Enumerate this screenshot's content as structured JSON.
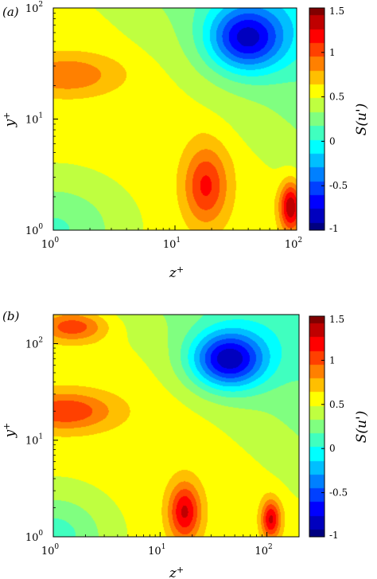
{
  "chart_data": [
    {
      "type": "heatmap",
      "panel_label": "(a)",
      "xlabel": "z+",
      "ylabel": "y+",
      "x_scale": "log",
      "y_scale": "log",
      "xlim": [
        1,
        100
      ],
      "ylim": [
        1,
        100
      ],
      "x_ticks": [
        {
          "base": "10",
          "exp": "0"
        },
        {
          "base": "10",
          "exp": "1"
        },
        {
          "base": "10",
          "exp": "2"
        }
      ],
      "y_ticks": [
        {
          "base": "10",
          "exp": "0"
        },
        {
          "base": "10",
          "exp": "1"
        },
        {
          "base": "10",
          "exp": "2"
        }
      ],
      "colorbar": {
        "label": "S(u')",
        "range": [
          -1,
          1.5
        ],
        "ticks": [
          "-1",
          "-0.5",
          "0",
          "0.5",
          "1",
          "1.5"
        ],
        "colormap": "jet"
      },
      "features": [
        {
          "z": 1,
          "y": 1,
          "value": 0.15,
          "spread": [
            0.55,
            0.45
          ],
          "shape": "corner"
        },
        {
          "z": 1.3,
          "y": 25,
          "value": 0.95,
          "spread": [
            0.4,
            0.18
          ]
        },
        {
          "z": 18,
          "y": 2.5,
          "value": 1.15,
          "spread": [
            0.18,
            0.35
          ]
        },
        {
          "z": 90,
          "y": 1.6,
          "value": 1.4,
          "spread": [
            0.09,
            0.22
          ]
        },
        {
          "z": 40,
          "y": 55,
          "value": -0.85,
          "spread": [
            0.32,
            0.3
          ]
        }
      ]
    },
    {
      "type": "heatmap",
      "panel_label": "(b)",
      "xlabel": "z+",
      "ylabel": "y+",
      "x_scale": "log",
      "y_scale": "log",
      "xlim": [
        1,
        200
      ],
      "ylim": [
        1,
        200
      ],
      "x_ticks": [
        {
          "base": "10",
          "exp": "0"
        },
        {
          "base": "10",
          "exp": "1"
        },
        {
          "base": "10",
          "exp": "2"
        }
      ],
      "y_ticks": [
        {
          "base": "10",
          "exp": "0"
        },
        {
          "base": "10",
          "exp": "1"
        },
        {
          "base": "10",
          "exp": "2"
        }
      ],
      "colorbar": {
        "label": "S(u')",
        "range": [
          -1,
          1.5
        ],
        "ticks": [
          "-1",
          "-0.5",
          "0",
          "0.5",
          "1",
          "1.5"
        ],
        "colormap": "jet"
      },
      "features": [
        {
          "z": 1,
          "y": 1,
          "value": 0.1,
          "spread": [
            0.5,
            0.45
          ],
          "shape": "corner"
        },
        {
          "z": 1.3,
          "y": 20,
          "value": 1.1,
          "spread": [
            0.45,
            0.2
          ]
        },
        {
          "z": 1.5,
          "y": 150,
          "value": 1.05,
          "spread": [
            0.3,
            0.15
          ]
        },
        {
          "z": 17,
          "y": 1.8,
          "value": 1.3,
          "spread": [
            0.15,
            0.3
          ]
        },
        {
          "z": 110,
          "y": 1.5,
          "value": 1.3,
          "spread": [
            0.09,
            0.2
          ]
        },
        {
          "z": 45,
          "y": 70,
          "value": -0.9,
          "spread": [
            0.35,
            0.3
          ]
        }
      ]
    }
  ]
}
